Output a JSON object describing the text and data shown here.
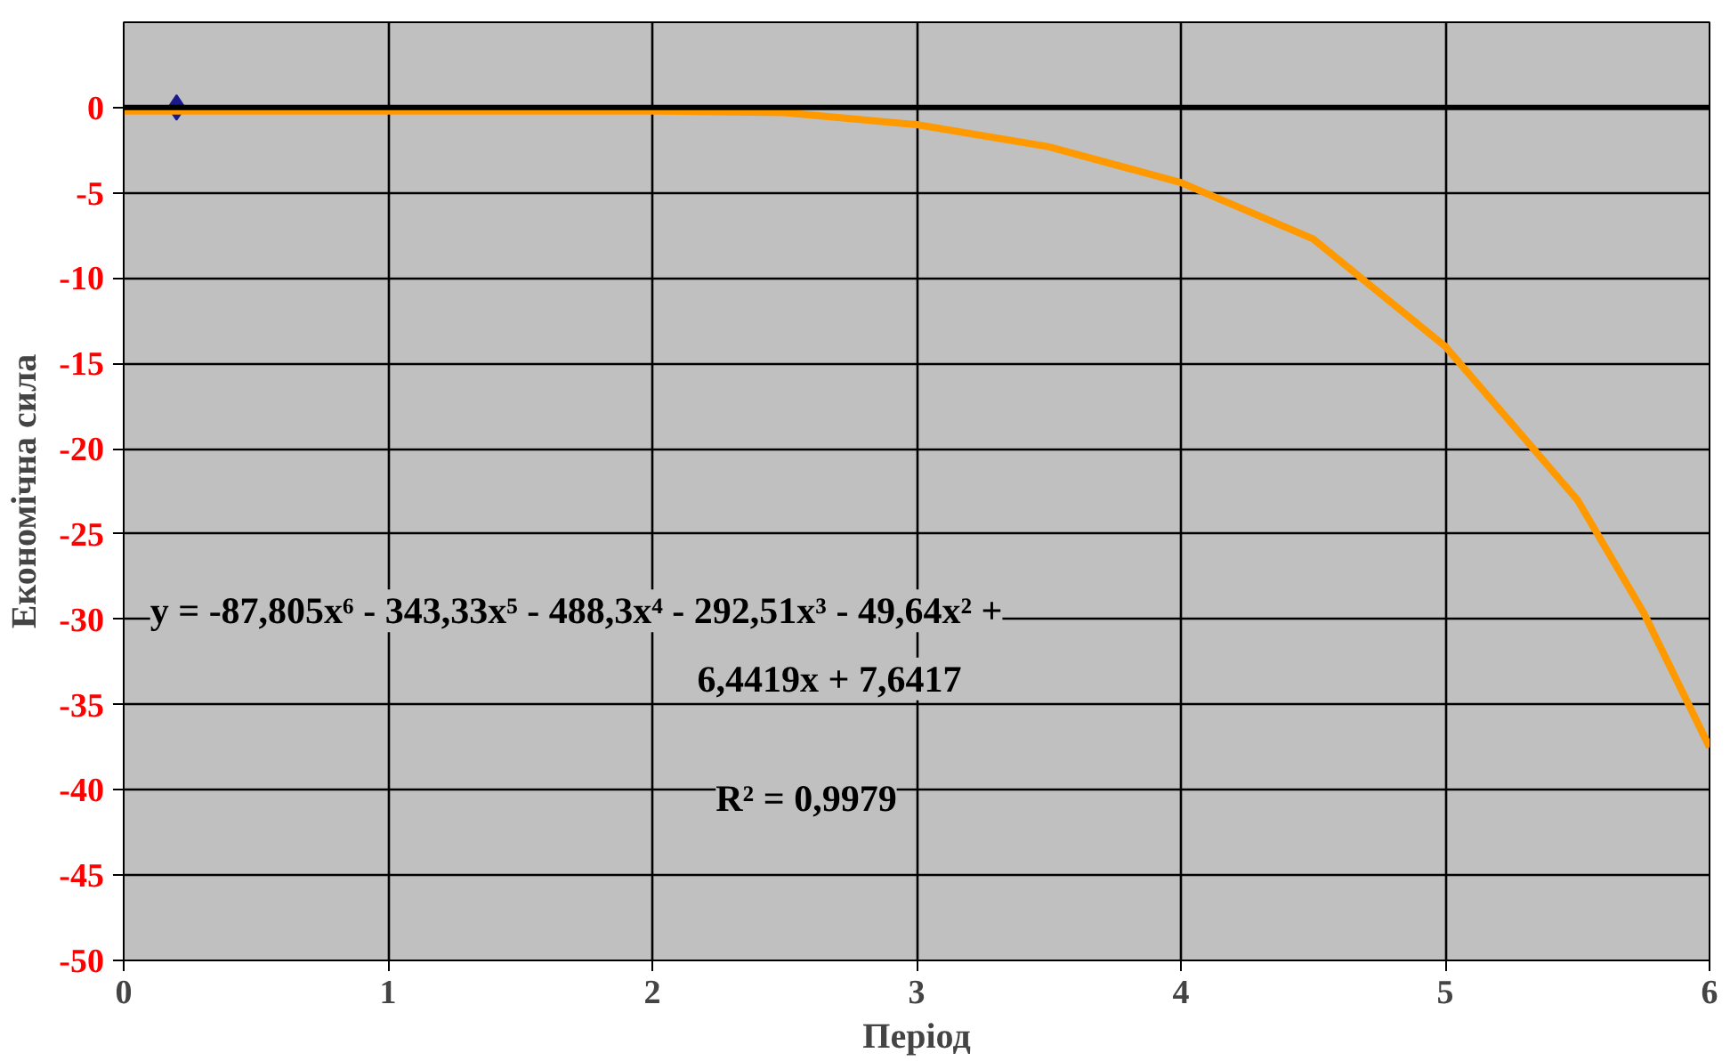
{
  "chart_data": {
    "type": "scatter",
    "xlabel": "Період",
    "ylabel": "Економічна сила",
    "series": [
      {
        "x": [
          0.2
        ],
        "values": [
          0
        ],
        "color": "#1a1a8c",
        "marker": "diamond"
      },
      {
        "type": "line",
        "x": [
          0,
          0.5,
          1,
          1.5,
          2,
          2.5,
          3,
          3.5,
          4,
          4.5,
          5,
          5.5,
          5.75,
          6
        ],
        "values": [
          -0.2,
          -0.2,
          -0.2,
          -0.2,
          -0.2,
          -0.3,
          -1,
          -2.3,
          -4.4,
          -7.7,
          -14,
          -23,
          -29.6,
          -37.5
        ],
        "color": "#ff9900",
        "line_style": "solid",
        "marker": "none"
      }
    ],
    "xlim": [
      0,
      6
    ],
    "xticks": [
      0,
      1,
      2,
      3,
      4,
      5,
      6
    ],
    "ylim": [
      -50,
      5
    ],
    "yticks": [
      -50,
      -45,
      -40,
      -35,
      -30,
      -25,
      -20,
      -15,
      -10,
      -5,
      0
    ],
    "grid": true,
    "ref_lines": [
      {
        "axis": "y",
        "value": 0,
        "color": "#000000"
      }
    ],
    "annotations": [
      "y = -87,805x⁶ - 343,33x⁵ - 488,3x⁴ - 292,51x³ - 49,64x² +",
      "6,4419x + 7,6417",
      "R² = 0,9979"
    ]
  }
}
